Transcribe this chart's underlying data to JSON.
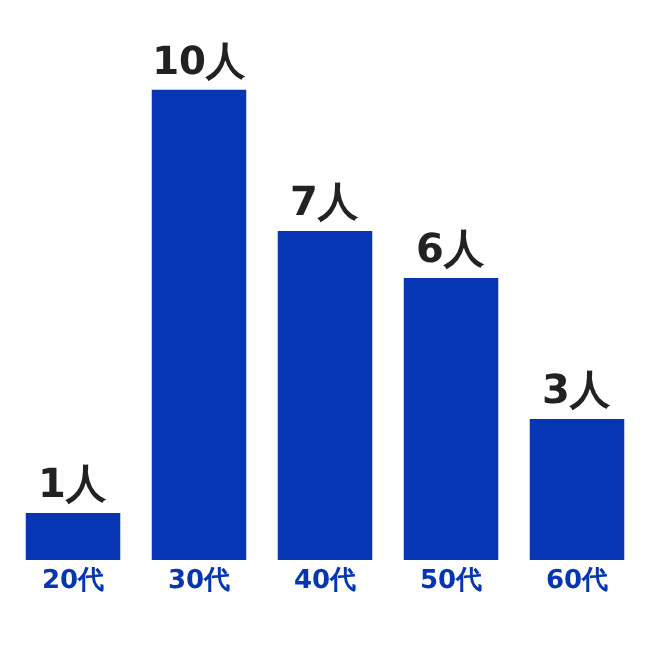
{
  "chart_data": {
    "type": "bar",
    "categories": [
      "20代",
      "30代",
      "40代",
      "50代",
      "60代"
    ],
    "values": [
      1,
      10,
      7,
      6,
      3
    ],
    "color": "#0636b4",
    "value_labels": [
      "1人",
      "10人",
      "7人",
      "6人",
      "3人"
    ],
    "legend": false
  }
}
